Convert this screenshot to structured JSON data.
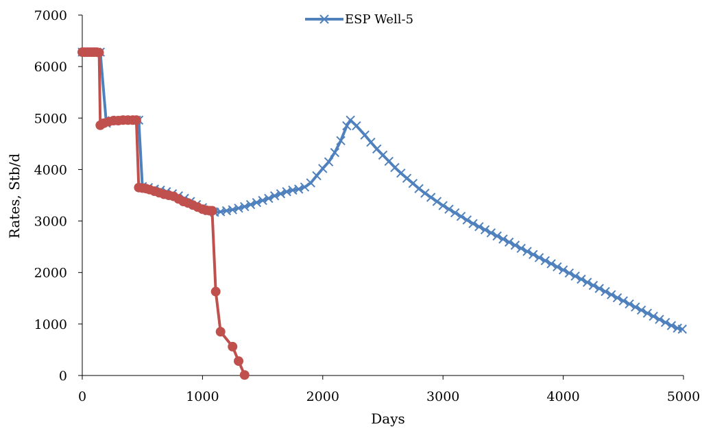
{
  "chart_data": {
    "type": "line",
    "xlabel": "Days",
    "ylabel": "Rates, Stb/d",
    "xlim": [
      0,
      5000
    ],
    "ylim": [
      0,
      7000
    ],
    "x_ticks": [
      0,
      1000,
      2000,
      3000,
      4000,
      5000
    ],
    "y_ticks": [
      0,
      1000,
      2000,
      3000,
      4000,
      5000,
      6000,
      7000
    ],
    "grid": false,
    "legend_position": "top-center",
    "series": [
      {
        "name": "ESP Well-5",
        "color": "#4F81BD",
        "marker": "x",
        "points": [
          [
            0,
            6280
          ],
          [
            30,
            6280
          ],
          [
            60,
            6280
          ],
          [
            90,
            6280
          ],
          [
            120,
            6280
          ],
          [
            150,
            6280
          ],
          [
            200,
            4900
          ],
          [
            250,
            4950
          ],
          [
            300,
            4960
          ],
          [
            350,
            4960
          ],
          [
            400,
            4960
          ],
          [
            450,
            4960
          ],
          [
            470,
            4960
          ],
          [
            500,
            3670
          ],
          [
            550,
            3650
          ],
          [
            600,
            3620
          ],
          [
            650,
            3600
          ],
          [
            700,
            3570
          ],
          [
            750,
            3530
          ],
          [
            800,
            3490
          ],
          [
            850,
            3440
          ],
          [
            900,
            3380
          ],
          [
            950,
            3320
          ],
          [
            1000,
            3260
          ],
          [
            1050,
            3200
          ],
          [
            1100,
            3170
          ],
          [
            1150,
            3180
          ],
          [
            1200,
            3200
          ],
          [
            1250,
            3220
          ],
          [
            1300,
            3250
          ],
          [
            1350,
            3280
          ],
          [
            1400,
            3320
          ],
          [
            1450,
            3360
          ],
          [
            1500,
            3400
          ],
          [
            1550,
            3440
          ],
          [
            1600,
            3490
          ],
          [
            1650,
            3530
          ],
          [
            1700,
            3570
          ],
          [
            1750,
            3600
          ],
          [
            1800,
            3620
          ],
          [
            1850,
            3660
          ],
          [
            1900,
            3740
          ],
          [
            1950,
            3880
          ],
          [
            2000,
            4020
          ],
          [
            2050,
            4150
          ],
          [
            2100,
            4330
          ],
          [
            2150,
            4560
          ],
          [
            2200,
            4850
          ],
          [
            2230,
            4960
          ],
          [
            2280,
            4850
          ],
          [
            2350,
            4670
          ],
          [
            2400,
            4530
          ],
          [
            2450,
            4400
          ],
          [
            2500,
            4280
          ],
          [
            2550,
            4160
          ],
          [
            2600,
            4040
          ],
          [
            2650,
            3930
          ],
          [
            2700,
            3830
          ],
          [
            2750,
            3730
          ],
          [
            2800,
            3630
          ],
          [
            2850,
            3540
          ],
          [
            2900,
            3460
          ],
          [
            2950,
            3380
          ],
          [
            3000,
            3300
          ],
          [
            3050,
            3230
          ],
          [
            3100,
            3160
          ],
          [
            3150,
            3090
          ],
          [
            3200,
            3020
          ],
          [
            3250,
            2950
          ],
          [
            3300,
            2890
          ],
          [
            3350,
            2830
          ],
          [
            3400,
            2770
          ],
          [
            3450,
            2710
          ],
          [
            3500,
            2650
          ],
          [
            3550,
            2590
          ],
          [
            3600,
            2530
          ],
          [
            3650,
            2470
          ],
          [
            3700,
            2410
          ],
          [
            3750,
            2350
          ],
          [
            3800,
            2290
          ],
          [
            3850,
            2230
          ],
          [
            3900,
            2170
          ],
          [
            3950,
            2110
          ],
          [
            4000,
            2050
          ],
          [
            4050,
            1990
          ],
          [
            4100,
            1930
          ],
          [
            4150,
            1870
          ],
          [
            4200,
            1810
          ],
          [
            4250,
            1750
          ],
          [
            4300,
            1690
          ],
          [
            4350,
            1630
          ],
          [
            4400,
            1570
          ],
          [
            4450,
            1510
          ],
          [
            4500,
            1450
          ],
          [
            4550,
            1390
          ],
          [
            4600,
            1330
          ],
          [
            4650,
            1270
          ],
          [
            4700,
            1210
          ],
          [
            4750,
            1150
          ],
          [
            4800,
            1090
          ],
          [
            4850,
            1030
          ],
          [
            4900,
            970
          ],
          [
            4950,
            920
          ],
          [
            4990,
            900
          ]
        ]
      },
      {
        "name": "",
        "color": "#C0504D",
        "marker": "circle",
        "points": [
          [
            0,
            6280
          ],
          [
            20,
            6280
          ],
          [
            40,
            6280
          ],
          [
            60,
            6280
          ],
          [
            80,
            6280
          ],
          [
            100,
            6280
          ],
          [
            120,
            6280
          ],
          [
            140,
            6270
          ],
          [
            150,
            4860
          ],
          [
            180,
            4900
          ],
          [
            220,
            4930
          ],
          [
            260,
            4950
          ],
          [
            300,
            4950
          ],
          [
            340,
            4960
          ],
          [
            380,
            4960
          ],
          [
            420,
            4960
          ],
          [
            450,
            4960
          ],
          [
            470,
            3650
          ],
          [
            500,
            3640
          ],
          [
            530,
            3630
          ],
          [
            560,
            3610
          ],
          [
            600,
            3580
          ],
          [
            640,
            3550
          ],
          [
            680,
            3520
          ],
          [
            720,
            3500
          ],
          [
            760,
            3480
          ],
          [
            800,
            3430
          ],
          [
            840,
            3380
          ],
          [
            880,
            3350
          ],
          [
            920,
            3310
          ],
          [
            960,
            3270
          ],
          [
            1000,
            3230
          ],
          [
            1030,
            3210
          ],
          [
            1060,
            3200
          ],
          [
            1080,
            3200
          ],
          [
            1110,
            1630
          ],
          [
            1150,
            850
          ],
          [
            1250,
            560
          ],
          [
            1300,
            280
          ],
          [
            1350,
            10
          ]
        ]
      }
    ]
  }
}
